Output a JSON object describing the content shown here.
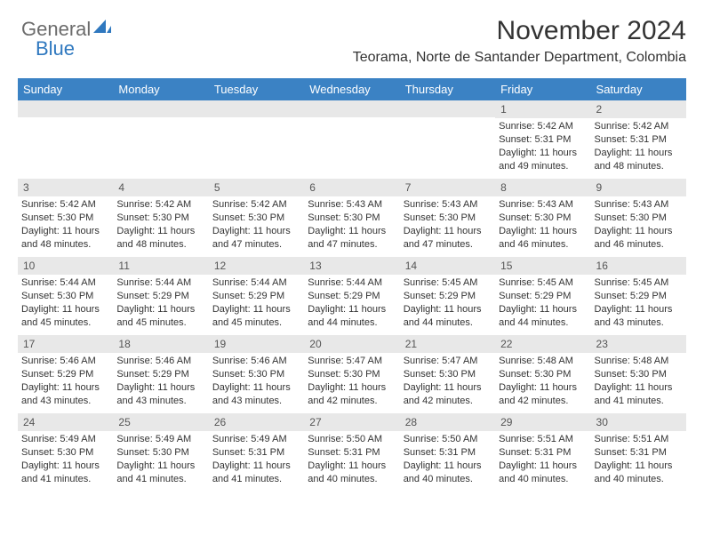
{
  "logo": {
    "text1": "General",
    "text2": "Blue"
  },
  "header": {
    "title": "November 2024",
    "location": "Teorama, Norte de Santander Department, Colombia"
  },
  "dayHeaders": [
    "Sunday",
    "Monday",
    "Tuesday",
    "Wednesday",
    "Thursday",
    "Friday",
    "Saturday"
  ],
  "colors": {
    "headerBg": "#3b82c4",
    "headerText": "#ffffff",
    "dayNumBg": "#e8e8e8",
    "text": "#333333"
  },
  "weeks": [
    [
      {
        "blank": true
      },
      {
        "blank": true
      },
      {
        "blank": true
      },
      {
        "blank": true
      },
      {
        "blank": true
      },
      {
        "num": "1",
        "sunrise": "Sunrise: 5:42 AM",
        "sunset": "Sunset: 5:31 PM",
        "daylight1": "Daylight: 11 hours",
        "daylight2": "and 49 minutes."
      },
      {
        "num": "2",
        "sunrise": "Sunrise: 5:42 AM",
        "sunset": "Sunset: 5:31 PM",
        "daylight1": "Daylight: 11 hours",
        "daylight2": "and 48 minutes."
      }
    ],
    [
      {
        "num": "3",
        "sunrise": "Sunrise: 5:42 AM",
        "sunset": "Sunset: 5:30 PM",
        "daylight1": "Daylight: 11 hours",
        "daylight2": "and 48 minutes."
      },
      {
        "num": "4",
        "sunrise": "Sunrise: 5:42 AM",
        "sunset": "Sunset: 5:30 PM",
        "daylight1": "Daylight: 11 hours",
        "daylight2": "and 48 minutes."
      },
      {
        "num": "5",
        "sunrise": "Sunrise: 5:42 AM",
        "sunset": "Sunset: 5:30 PM",
        "daylight1": "Daylight: 11 hours",
        "daylight2": "and 47 minutes."
      },
      {
        "num": "6",
        "sunrise": "Sunrise: 5:43 AM",
        "sunset": "Sunset: 5:30 PM",
        "daylight1": "Daylight: 11 hours",
        "daylight2": "and 47 minutes."
      },
      {
        "num": "7",
        "sunrise": "Sunrise: 5:43 AM",
        "sunset": "Sunset: 5:30 PM",
        "daylight1": "Daylight: 11 hours",
        "daylight2": "and 47 minutes."
      },
      {
        "num": "8",
        "sunrise": "Sunrise: 5:43 AM",
        "sunset": "Sunset: 5:30 PM",
        "daylight1": "Daylight: 11 hours",
        "daylight2": "and 46 minutes."
      },
      {
        "num": "9",
        "sunrise": "Sunrise: 5:43 AM",
        "sunset": "Sunset: 5:30 PM",
        "daylight1": "Daylight: 11 hours",
        "daylight2": "and 46 minutes."
      }
    ],
    [
      {
        "num": "10",
        "sunrise": "Sunrise: 5:44 AM",
        "sunset": "Sunset: 5:30 PM",
        "daylight1": "Daylight: 11 hours",
        "daylight2": "and 45 minutes."
      },
      {
        "num": "11",
        "sunrise": "Sunrise: 5:44 AM",
        "sunset": "Sunset: 5:29 PM",
        "daylight1": "Daylight: 11 hours",
        "daylight2": "and 45 minutes."
      },
      {
        "num": "12",
        "sunrise": "Sunrise: 5:44 AM",
        "sunset": "Sunset: 5:29 PM",
        "daylight1": "Daylight: 11 hours",
        "daylight2": "and 45 minutes."
      },
      {
        "num": "13",
        "sunrise": "Sunrise: 5:44 AM",
        "sunset": "Sunset: 5:29 PM",
        "daylight1": "Daylight: 11 hours",
        "daylight2": "and 44 minutes."
      },
      {
        "num": "14",
        "sunrise": "Sunrise: 5:45 AM",
        "sunset": "Sunset: 5:29 PM",
        "daylight1": "Daylight: 11 hours",
        "daylight2": "and 44 minutes."
      },
      {
        "num": "15",
        "sunrise": "Sunrise: 5:45 AM",
        "sunset": "Sunset: 5:29 PM",
        "daylight1": "Daylight: 11 hours",
        "daylight2": "and 44 minutes."
      },
      {
        "num": "16",
        "sunrise": "Sunrise: 5:45 AM",
        "sunset": "Sunset: 5:29 PM",
        "daylight1": "Daylight: 11 hours",
        "daylight2": "and 43 minutes."
      }
    ],
    [
      {
        "num": "17",
        "sunrise": "Sunrise: 5:46 AM",
        "sunset": "Sunset: 5:29 PM",
        "daylight1": "Daylight: 11 hours",
        "daylight2": "and 43 minutes."
      },
      {
        "num": "18",
        "sunrise": "Sunrise: 5:46 AM",
        "sunset": "Sunset: 5:29 PM",
        "daylight1": "Daylight: 11 hours",
        "daylight2": "and 43 minutes."
      },
      {
        "num": "19",
        "sunrise": "Sunrise: 5:46 AM",
        "sunset": "Sunset: 5:30 PM",
        "daylight1": "Daylight: 11 hours",
        "daylight2": "and 43 minutes."
      },
      {
        "num": "20",
        "sunrise": "Sunrise: 5:47 AM",
        "sunset": "Sunset: 5:30 PM",
        "daylight1": "Daylight: 11 hours",
        "daylight2": "and 42 minutes."
      },
      {
        "num": "21",
        "sunrise": "Sunrise: 5:47 AM",
        "sunset": "Sunset: 5:30 PM",
        "daylight1": "Daylight: 11 hours",
        "daylight2": "and 42 minutes."
      },
      {
        "num": "22",
        "sunrise": "Sunrise: 5:48 AM",
        "sunset": "Sunset: 5:30 PM",
        "daylight1": "Daylight: 11 hours",
        "daylight2": "and 42 minutes."
      },
      {
        "num": "23",
        "sunrise": "Sunrise: 5:48 AM",
        "sunset": "Sunset: 5:30 PM",
        "daylight1": "Daylight: 11 hours",
        "daylight2": "and 41 minutes."
      }
    ],
    [
      {
        "num": "24",
        "sunrise": "Sunrise: 5:49 AM",
        "sunset": "Sunset: 5:30 PM",
        "daylight1": "Daylight: 11 hours",
        "daylight2": "and 41 minutes."
      },
      {
        "num": "25",
        "sunrise": "Sunrise: 5:49 AM",
        "sunset": "Sunset: 5:30 PM",
        "daylight1": "Daylight: 11 hours",
        "daylight2": "and 41 minutes."
      },
      {
        "num": "26",
        "sunrise": "Sunrise: 5:49 AM",
        "sunset": "Sunset: 5:31 PM",
        "daylight1": "Daylight: 11 hours",
        "daylight2": "and 41 minutes."
      },
      {
        "num": "27",
        "sunrise": "Sunrise: 5:50 AM",
        "sunset": "Sunset: 5:31 PM",
        "daylight1": "Daylight: 11 hours",
        "daylight2": "and 40 minutes."
      },
      {
        "num": "28",
        "sunrise": "Sunrise: 5:50 AM",
        "sunset": "Sunset: 5:31 PM",
        "daylight1": "Daylight: 11 hours",
        "daylight2": "and 40 minutes."
      },
      {
        "num": "29",
        "sunrise": "Sunrise: 5:51 AM",
        "sunset": "Sunset: 5:31 PM",
        "daylight1": "Daylight: 11 hours",
        "daylight2": "and 40 minutes."
      },
      {
        "num": "30",
        "sunrise": "Sunrise: 5:51 AM",
        "sunset": "Sunset: 5:31 PM",
        "daylight1": "Daylight: 11 hours",
        "daylight2": "and 40 minutes."
      }
    ]
  ]
}
